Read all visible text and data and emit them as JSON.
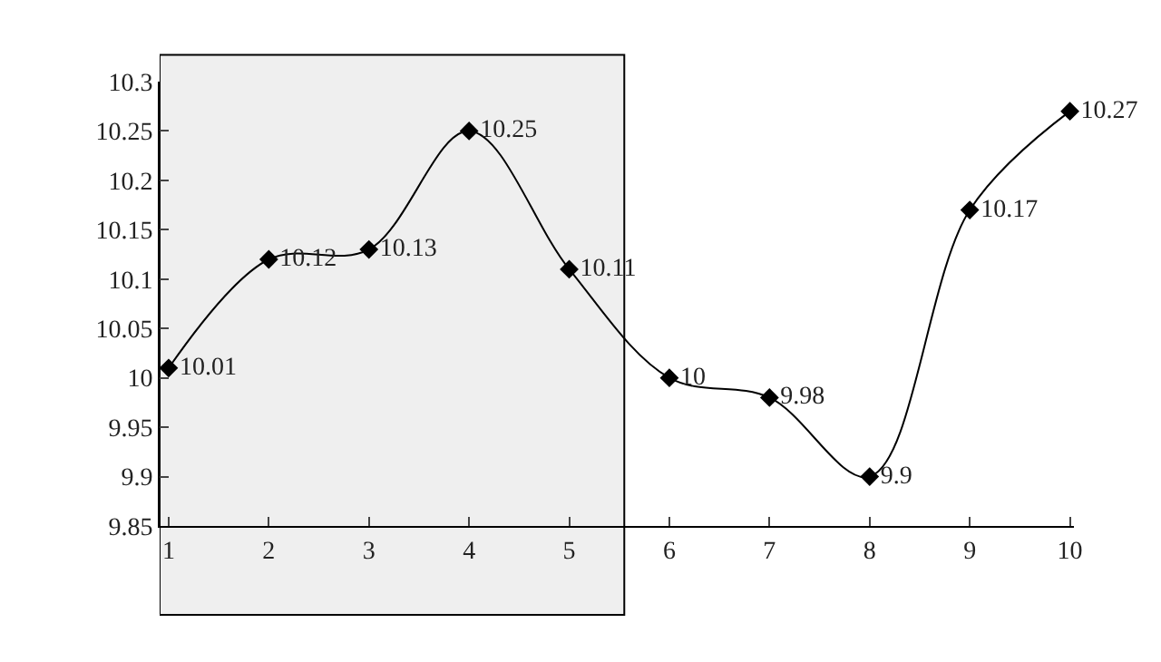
{
  "chart_data": {
    "type": "line",
    "x": [
      1,
      2,
      3,
      4,
      5,
      6,
      7,
      8,
      9,
      10
    ],
    "values": [
      10.01,
      10.12,
      10.13,
      10.25,
      10.11,
      10,
      9.98,
      9.9,
      10.17,
      10.27
    ],
    "color": "#000000",
    "marker": "diamond",
    "data_labels": true,
    "grid": false,
    "xlim": [
      0.91,
      10.04
    ],
    "xticks": [
      1,
      2,
      3,
      4,
      5,
      6,
      7,
      8,
      9,
      10
    ],
    "ylim": [
      9.85,
      10.3
    ],
    "yticks": [
      9.85,
      9.9,
      9.95,
      10,
      10.05,
      10.1,
      10.15,
      10.2,
      10.25,
      10.3
    ],
    "bands": [
      {
        "axis": "x",
        "from": 0.91,
        "to": 5.55,
        "color": "#000000"
      }
    ]
  }
}
